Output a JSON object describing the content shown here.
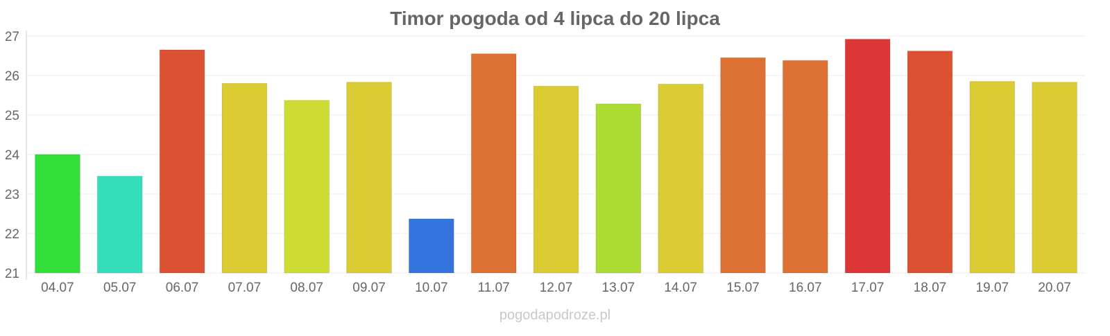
{
  "chart_data": {
    "type": "bar",
    "title": "Timor pogoda od 4 lipca do 20 lipca",
    "xlabel": "",
    "ylabel": "",
    "ylim": [
      21,
      27
    ],
    "y_ticks": [
      "21",
      "22",
      "23",
      "24",
      "25",
      "26",
      "27"
    ],
    "grid": true,
    "legend": "none",
    "categories": [
      "04.07",
      "05.07",
      "06.07",
      "07.07",
      "08.07",
      "09.07",
      "10.07",
      "11.07",
      "12.07",
      "13.07",
      "14.07",
      "15.07",
      "16.07",
      "17.07",
      "18.07",
      "19.07",
      "20.07"
    ],
    "values": [
      24.0,
      23.45,
      26.65,
      25.8,
      25.37,
      25.83,
      22.37,
      26.55,
      25.73,
      25.28,
      25.78,
      26.45,
      26.38,
      26.92,
      26.62,
      25.85,
      25.83
    ],
    "colors": [
      "#33e03a",
      "#33debb",
      "#dd5133",
      "#dbcc33",
      "#cfdc33",
      "#dbcc33",
      "#3375dd",
      "#dd7133",
      "#dbcc33",
      "#acdc33",
      "#dbcc33",
      "#dd7133",
      "#dd7133",
      "#dc3636",
      "#dd5133",
      "#dbcc33",
      "#dbcc33"
    ]
  },
  "footer": {
    "watermark": "pogodapodroze.pl"
  },
  "colors": {
    "title": "#666666",
    "tick_label": "#666666",
    "watermark": "#c8c8c8",
    "grid": "#eeeeee",
    "axis": "#d0d0d0"
  }
}
